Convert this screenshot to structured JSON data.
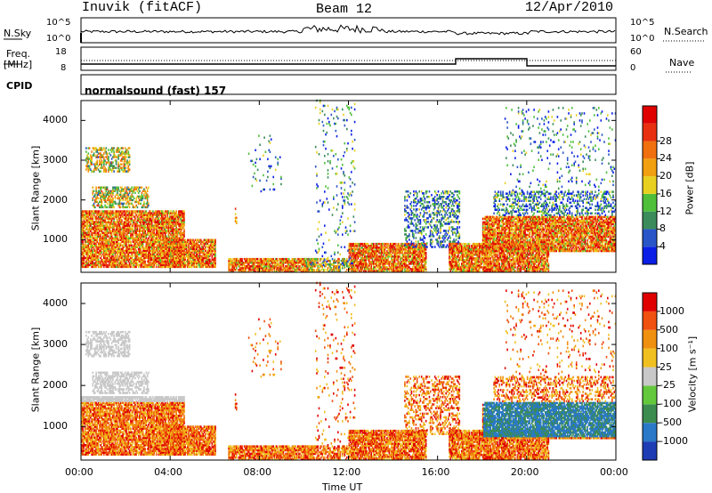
{
  "header": {
    "station": "Inuvik (fitACF)",
    "beam": "Beam 12",
    "date": "12/Apr/2010"
  },
  "strip_labels": {
    "nsky": "N.Sky",
    "nsky_ticks": [
      "10^5",
      "10^0"
    ],
    "nsearch": "N.Search",
    "freq_line1": "Freq.",
    "freq_line2": "[MHz]",
    "freq_ticks": [
      "18",
      "8"
    ],
    "nave": "Nave",
    "nave_ticks": [
      "60",
      "0"
    ],
    "cpid": "CPID",
    "cpid_value": "normalsound (fast) 157"
  },
  "chart_data": [
    {
      "type": "heatmap",
      "title": "",
      "xlabel": "Time UT",
      "ylabel": "Slant Range [km]",
      "xlim": [
        0,
        24
      ],
      "ylim": [
        180,
        4500
      ],
      "x_ticks": [
        "00:00",
        "04:00",
        "08:00",
        "12:00",
        "16:00",
        "20:00",
        "00:00"
      ],
      "y_ticks": [
        "1000",
        "2000",
        "3000",
        "4000"
      ],
      "colorbar": {
        "label": "Power [dB]",
        "ticks": [
          "4",
          "8",
          "12",
          "16",
          "20",
          "24",
          "28"
        ],
        "colors": [
          "#0a1ee6",
          "#2a55c8",
          "#3b8c5a",
          "#4fbf3a",
          "#e8d020",
          "#f0a010",
          "#f07010",
          "#e83010",
          "#e00000"
        ]
      }
    },
    {
      "type": "heatmap",
      "title": "",
      "xlabel": "Time UT",
      "ylabel": "Slant Range [km]",
      "xlim": [
        0,
        24
      ],
      "ylim": [
        180,
        4500
      ],
      "x_ticks": [
        "00:00",
        "04:00",
        "08:00",
        "12:00",
        "16:00",
        "20:00",
        "00:00"
      ],
      "y_ticks": [
        "1000",
        "2000",
        "3000",
        "4000"
      ],
      "colorbar": {
        "label": "Velocity [m s⁻¹]",
        "ticks": [
          "1000",
          "500",
          "100",
          "25",
          "-25",
          "-100",
          "-500",
          "-1000"
        ],
        "colors": [
          "#1e3cb4",
          "#2a78c8",
          "#3c8c50",
          "#64c83c",
          "#c8c8c8",
          "#f0c020",
          "#f09010",
          "#f05010",
          "#e00000"
        ]
      }
    }
  ]
}
